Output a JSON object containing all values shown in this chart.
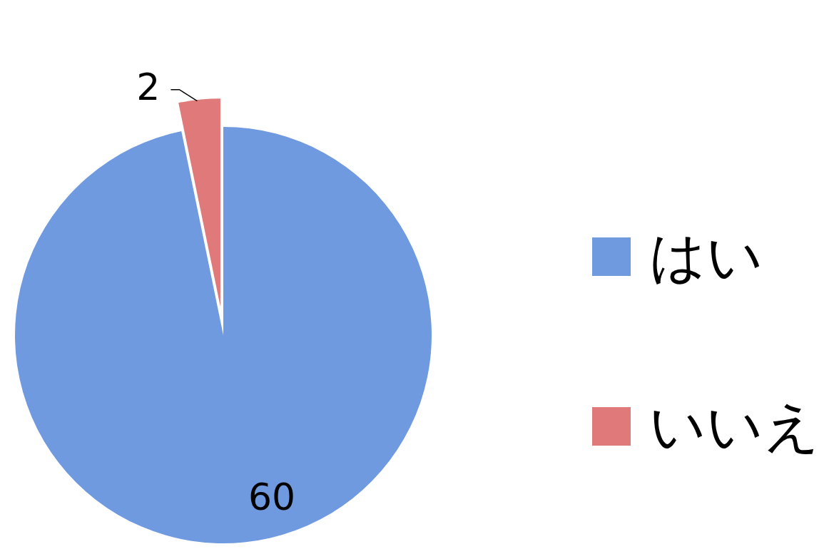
{
  "chart_data": {
    "type": "pie",
    "categories": [
      "はい",
      "いいえ"
    ],
    "values": [
      60,
      2
    ],
    "colors": [
      "#6f9ae0",
      "#e07a7a"
    ],
    "data_labels": true,
    "legend": "right"
  }
}
